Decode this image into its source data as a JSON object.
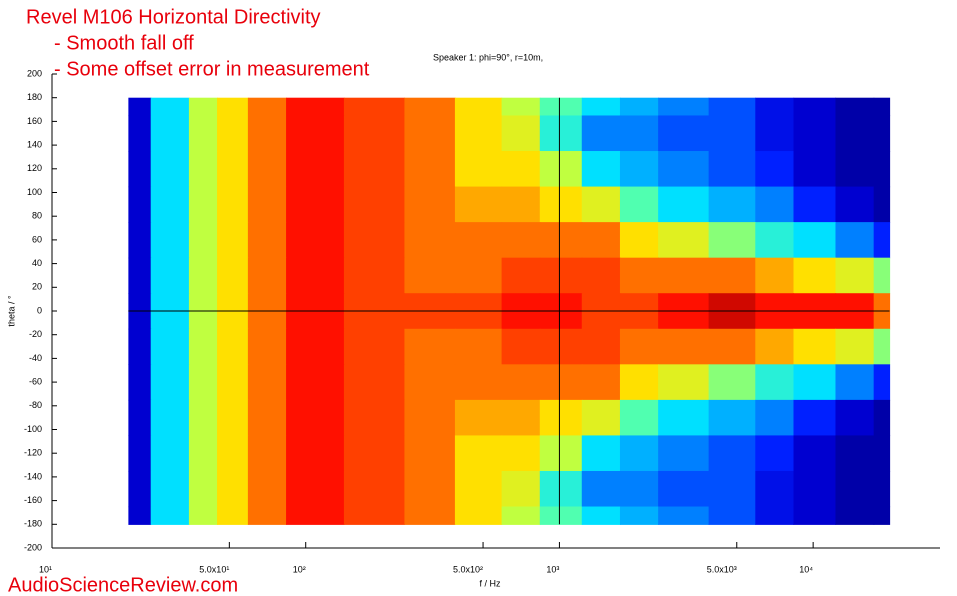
{
  "chart_data": {
    "type": "contour",
    "title": [
      "Revel M106 Horizontal Directivity",
      "- Smooth fall off",
      "- Some offset error in measurement"
    ],
    "subtitle": "Speaker 1: phi=90°, r=10m,",
    "x_label": "f / Hz",
    "y_label": "theta / °",
    "watermark": "AudioScienceReview.com",
    "x_scale": "log",
    "x": [
      20,
      30,
      40,
      50,
      70,
      100,
      200,
      300,
      500,
      700,
      1000,
      1500,
      2000,
      3000,
      5000,
      7000,
      10000,
      15000,
      20000
    ],
    "y": [
      180,
      150,
      120,
      90,
      60,
      30,
      0,
      -30,
      -60,
      -90,
      -120,
      -150,
      -180
    ],
    "values": [
      [
        1,
        4,
        6,
        7,
        8,
        9,
        8.5,
        8,
        7,
        6,
        5,
        4,
        3.5,
        3,
        2.5,
        1.5,
        1,
        0.5,
        0.5
      ],
      [
        1,
        4,
        6,
        7,
        8,
        9,
        8.5,
        8,
        7,
        6.5,
        4.5,
        3,
        3,
        2.5,
        2.5,
        1.5,
        1,
        0.5,
        0.5
      ],
      [
        1,
        4,
        6,
        7,
        8,
        9,
        8.5,
        8,
        7,
        7,
        6,
        4,
        3.5,
        3,
        2.5,
        2,
        1,
        0.5,
        0.5
      ],
      [
        1,
        4,
        6,
        7,
        8,
        9,
        8.5,
        8,
        7.5,
        7.5,
        7,
        6.5,
        5,
        4,
        3.5,
        3,
        2,
        1,
        0.5
      ],
      [
        1,
        4,
        6,
        7,
        8,
        9,
        8.5,
        8,
        8,
        8,
        8,
        8,
        7,
        6.5,
        5.5,
        4.5,
        4,
        3,
        2
      ],
      [
        1,
        4,
        6,
        7,
        8,
        9,
        8.5,
        8,
        8,
        8.5,
        8.5,
        8.5,
        8,
        8,
        8,
        7.5,
        7,
        6.5,
        5.5
      ],
      [
        1,
        4,
        6,
        7,
        8,
        9,
        8.5,
        8.5,
        8.5,
        9,
        9,
        8.5,
        8.5,
        9,
        9.5,
        9,
        9,
        9,
        8
      ],
      [
        1,
        4,
        6,
        7,
        8,
        9,
        8.5,
        8,
        8,
        8.5,
        8.5,
        8.5,
        8,
        8,
        8,
        7.5,
        7,
        6.5,
        5.5
      ],
      [
        1,
        4,
        6,
        7,
        8,
        9,
        8.5,
        8,
        8,
        8,
        8,
        8,
        7,
        6.5,
        5.5,
        4.5,
        4,
        3,
        2
      ],
      [
        1,
        4,
        6,
        7,
        8,
        9,
        8.5,
        8,
        7.5,
        7.5,
        7,
        6.5,
        5,
        4,
        3.5,
        3,
        2,
        1,
        0.5
      ],
      [
        1,
        4,
        6,
        7,
        8,
        9,
        8.5,
        8,
        7,
        7,
        6,
        4,
        3.5,
        3,
        2.5,
        2,
        1,
        0.5,
        0.5
      ],
      [
        1,
        4,
        6,
        7,
        8,
        9,
        8.5,
        8,
        7,
        6.5,
        4.5,
        3,
        3,
        2.5,
        2.5,
        1.5,
        1,
        0.5,
        0.5
      ],
      [
        1,
        4,
        6,
        7,
        8,
        9,
        8.5,
        8,
        7,
        6,
        5,
        4,
        3.5,
        3,
        2.5,
        1.5,
        1,
        0.5,
        0.5
      ]
    ],
    "zlim": [
      0,
      10
    ],
    "colormap": [
      "#00007f",
      "#0000d0",
      "#0020ff",
      "#0080ff",
      "#00e0ff",
      "#50ffb0",
      "#c0ff40",
      "#ffe000",
      "#ff7000",
      "#ff1000",
      "#a00000"
    ],
    "xlim": [
      10,
      31623
    ],
    "xticks": [
      {
        "value": 10,
        "label": "10¹"
      },
      {
        "value": 50,
        "label": "5.0x10¹"
      },
      {
        "value": 100,
        "label": "10²"
      },
      {
        "value": 500,
        "label": "5.0x10²"
      },
      {
        "value": 1000,
        "label": "10³"
      },
      {
        "value": 5000,
        "label": "5.0x10³"
      },
      {
        "value": 10000,
        "label": "10⁴"
      }
    ],
    "ylim": [
      -200,
      200
    ],
    "yticks": [
      -200,
      -180,
      -160,
      -140,
      -120,
      -100,
      -80,
      -60,
      -40,
      -20,
      0,
      20,
      40,
      60,
      80,
      100,
      120,
      140,
      160,
      180,
      200
    ],
    "crosshair": {
      "x": 1000,
      "y": 0
    }
  }
}
